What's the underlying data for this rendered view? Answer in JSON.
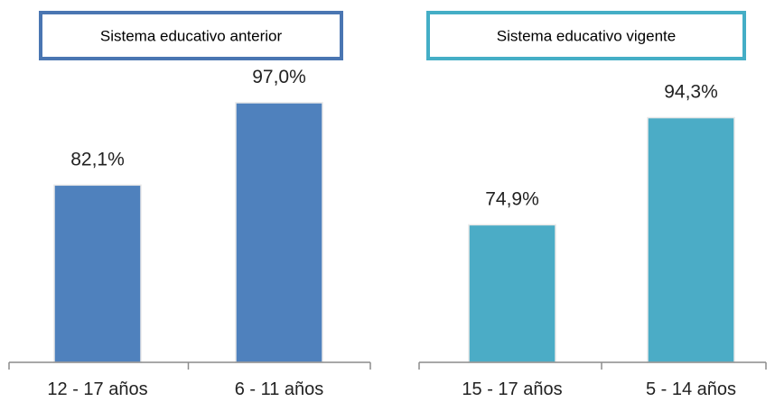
{
  "chart_data": [
    {
      "type": "bar",
      "title": "Sistema educativo anterior",
      "categories": [
        "12 - 17 años",
        "6 - 11 años"
      ],
      "values": [
        82.1,
        97.0
      ],
      "value_labels": [
        "82,1%",
        "97,0%"
      ],
      "ylim": [
        50,
        105
      ],
      "grid": false,
      "color": "#4F81BD",
      "title_border_color": "#4A76B2"
    },
    {
      "type": "bar",
      "title": "Sistema educativo vigente",
      "categories": [
        "15 - 17 años",
        "5 - 14 años"
      ],
      "values": [
        74.9,
        94.3
      ],
      "value_labels": [
        "74,9%",
        "94,3%"
      ],
      "ylim": [
        50,
        105
      ],
      "grid": false,
      "color": "#4BACC6",
      "title_border_color": "#44AEC6"
    }
  ]
}
